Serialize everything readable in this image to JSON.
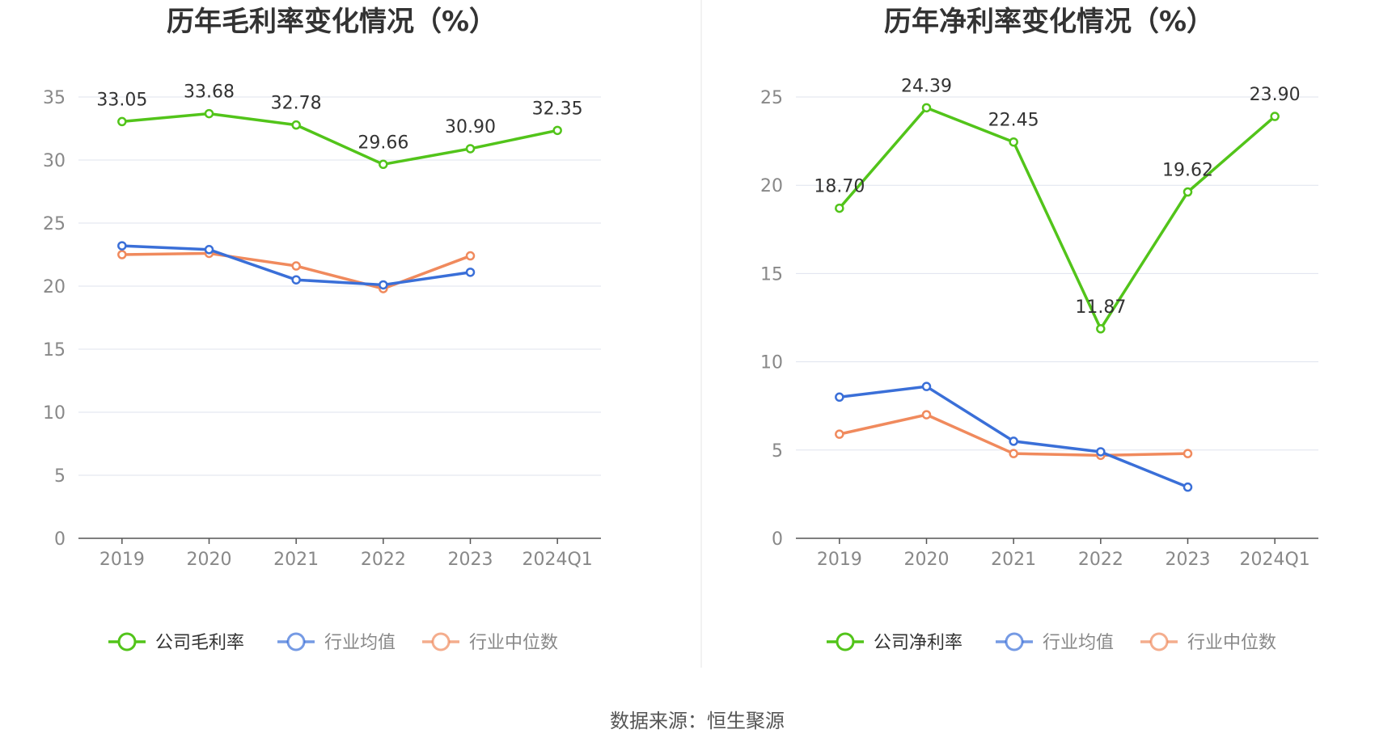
{
  "source_text": "数据来源：恒生聚源",
  "chart_data": [
    {
      "type": "line",
      "title": "历年毛利率变化情况（%）",
      "categories": [
        "2019",
        "2020",
        "2021",
        "2022",
        "2023",
        "2024Q1"
      ],
      "ylim": [
        0,
        35
      ],
      "yticks": [
        0,
        5,
        10,
        15,
        20,
        25,
        30,
        35
      ],
      "grid": true,
      "legend_position": "bottom",
      "series": [
        {
          "name": "公司毛利率",
          "color": "#52c41a",
          "values": [
            33.05,
            33.68,
            32.78,
            29.66,
            30.9,
            32.35
          ],
          "labels": [
            "33.05",
            "33.68",
            "32.78",
            "29.66",
            "30.90",
            "32.35"
          ]
        },
        {
          "name": "行业均值",
          "color": "#3a6fd8",
          "values": [
            23.2,
            22.9,
            20.5,
            20.1,
            21.1,
            null
          ]
        },
        {
          "name": "行业中位数",
          "color": "#f08a5d",
          "values": [
            22.5,
            22.6,
            21.6,
            19.8,
            22.4,
            null
          ]
        }
      ]
    },
    {
      "type": "line",
      "title": "历年净利率变化情况（%）",
      "categories": [
        "2019",
        "2020",
        "2021",
        "2022",
        "2023",
        "2024Q1"
      ],
      "ylim": [
        0,
        25
      ],
      "yticks": [
        0,
        5,
        10,
        15,
        20,
        25
      ],
      "grid": true,
      "legend_position": "bottom",
      "series": [
        {
          "name": "公司净利率",
          "color": "#52c41a",
          "values": [
            18.7,
            24.39,
            22.45,
            11.87,
            19.62,
            23.9
          ],
          "labels": [
            "18.70",
            "24.39",
            "22.45",
            "11.87",
            "19.62",
            "23.90"
          ]
        },
        {
          "name": "行业均值",
          "color": "#3a6fd8",
          "values": [
            8.0,
            8.6,
            5.5,
            4.9,
            2.9,
            null
          ]
        },
        {
          "name": "行业中位数",
          "color": "#f08a5d",
          "values": [
            5.9,
            7.0,
            4.8,
            4.7,
            4.8,
            null
          ]
        }
      ]
    }
  ]
}
